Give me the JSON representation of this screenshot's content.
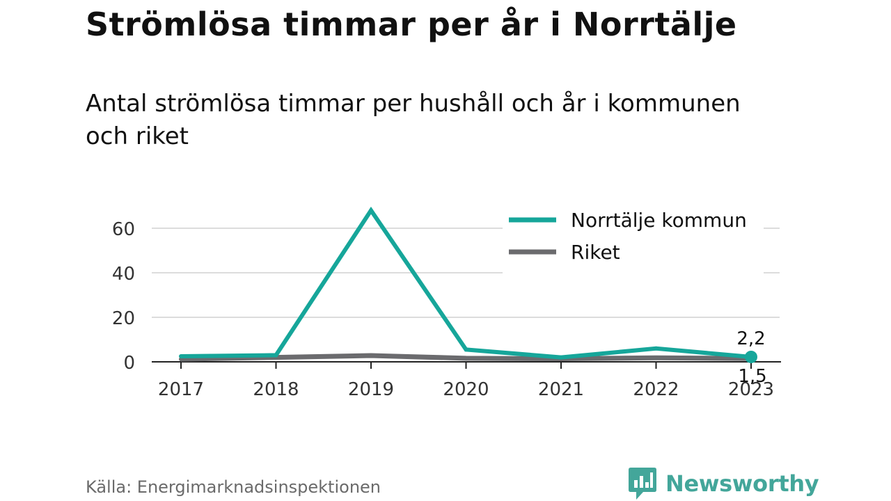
{
  "title": "Strömlösa timmar per år i Norrtälje",
  "subtitle": "Antal strömlösa timmar per hushåll och år i kommunen och riket",
  "source": "Källa: Energimarknadsinspektionen",
  "brand": {
    "name": "Newsworthy",
    "icon": "bar-chart-speech-bubble-icon",
    "color": "#43a69a"
  },
  "chart_data": {
    "type": "line",
    "x": [
      "2017",
      "2018",
      "2019",
      "2020",
      "2021",
      "2022",
      "2023"
    ],
    "y_ticks": [
      "0",
      "20",
      "40",
      "60"
    ],
    "ylim": [
      0,
      70
    ],
    "grid": true,
    "legend_position": "top-right",
    "series": [
      {
        "name": "Norrtälje kommun",
        "color": "#16a69a",
        "values": [
          2.5,
          3.0,
          68.0,
          5.5,
          2.0,
          6.0,
          2.2
        ]
      },
      {
        "name": "Riket",
        "color": "#6b6b6e",
        "values": [
          1.2,
          2.0,
          2.8,
          1.6,
          1.4,
          1.8,
          1.5
        ]
      }
    ],
    "end_labels": [
      "2,2",
      "1,5"
    ]
  }
}
